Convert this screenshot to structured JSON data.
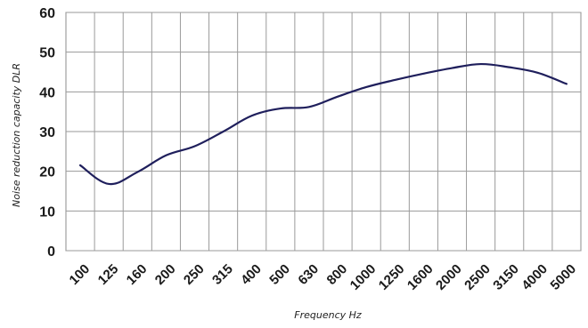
{
  "chart_data": {
    "type": "line",
    "title": "",
    "xlabel": "Frequency Hz",
    "ylabel": "Noise reduction capacity DLR",
    "categories": [
      "100",
      "125",
      "160",
      "200",
      "250",
      "315",
      "400",
      "500",
      "630",
      "800",
      "1000",
      "1250",
      "1600",
      "2000",
      "2500",
      "3150",
      "4000",
      "5000"
    ],
    "ylim": [
      0,
      60
    ],
    "yticks": [
      "0",
      "10",
      "20",
      "30",
      "40",
      "50",
      "60"
    ],
    "grid": true,
    "legend": "none",
    "series": [
      {
        "color": "#1f1f5c",
        "values": [
          21.5,
          16.8,
          19.8,
          24.0,
          26.3,
          30.0,
          34.0,
          35.8,
          36.2,
          38.8,
          41.2,
          43.0,
          44.6,
          46.0,
          47.0,
          46.2,
          44.8,
          42.0
        ]
      }
    ]
  }
}
